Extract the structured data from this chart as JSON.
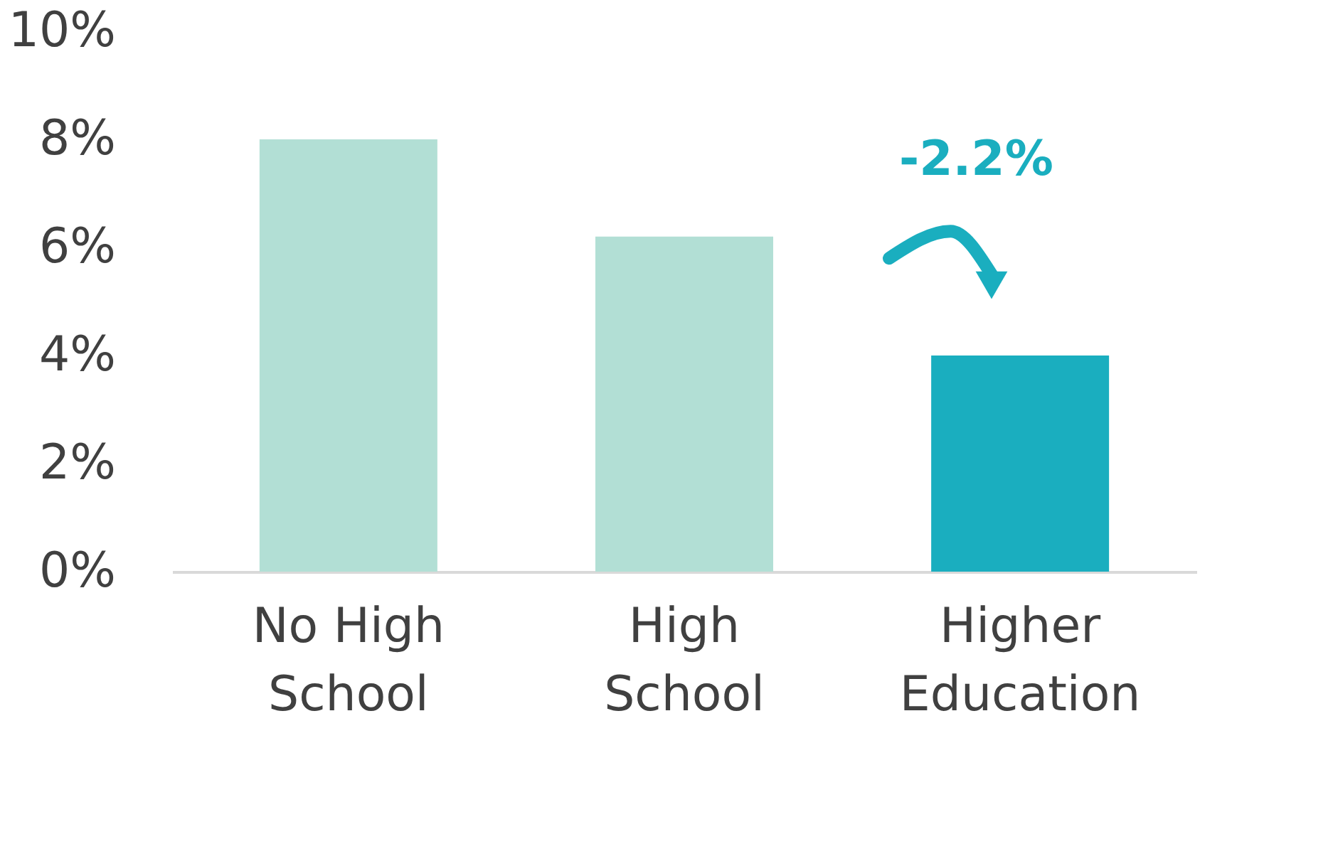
{
  "chart_data": {
    "type": "bar",
    "categories": [
      "No High School",
      "High School",
      "Higher Education"
    ],
    "values": [
      8,
      6.2,
      4
    ],
    "colors": [
      "#b2dfd5",
      "#b2dfd5",
      "#1aaebf"
    ],
    "ylim": [
      0,
      10
    ],
    "yticks": [
      {
        "value": 0,
        "label": "0%"
      },
      {
        "value": 2,
        "label": "2%"
      },
      {
        "value": 4,
        "label": "4%"
      },
      {
        "value": 6,
        "label": "6%"
      },
      {
        "value": 8,
        "label": "8%"
      },
      {
        "value": 10,
        "label": "10%"
      }
    ],
    "grid": false,
    "annotations": [
      "-2.2%"
    ]
  }
}
